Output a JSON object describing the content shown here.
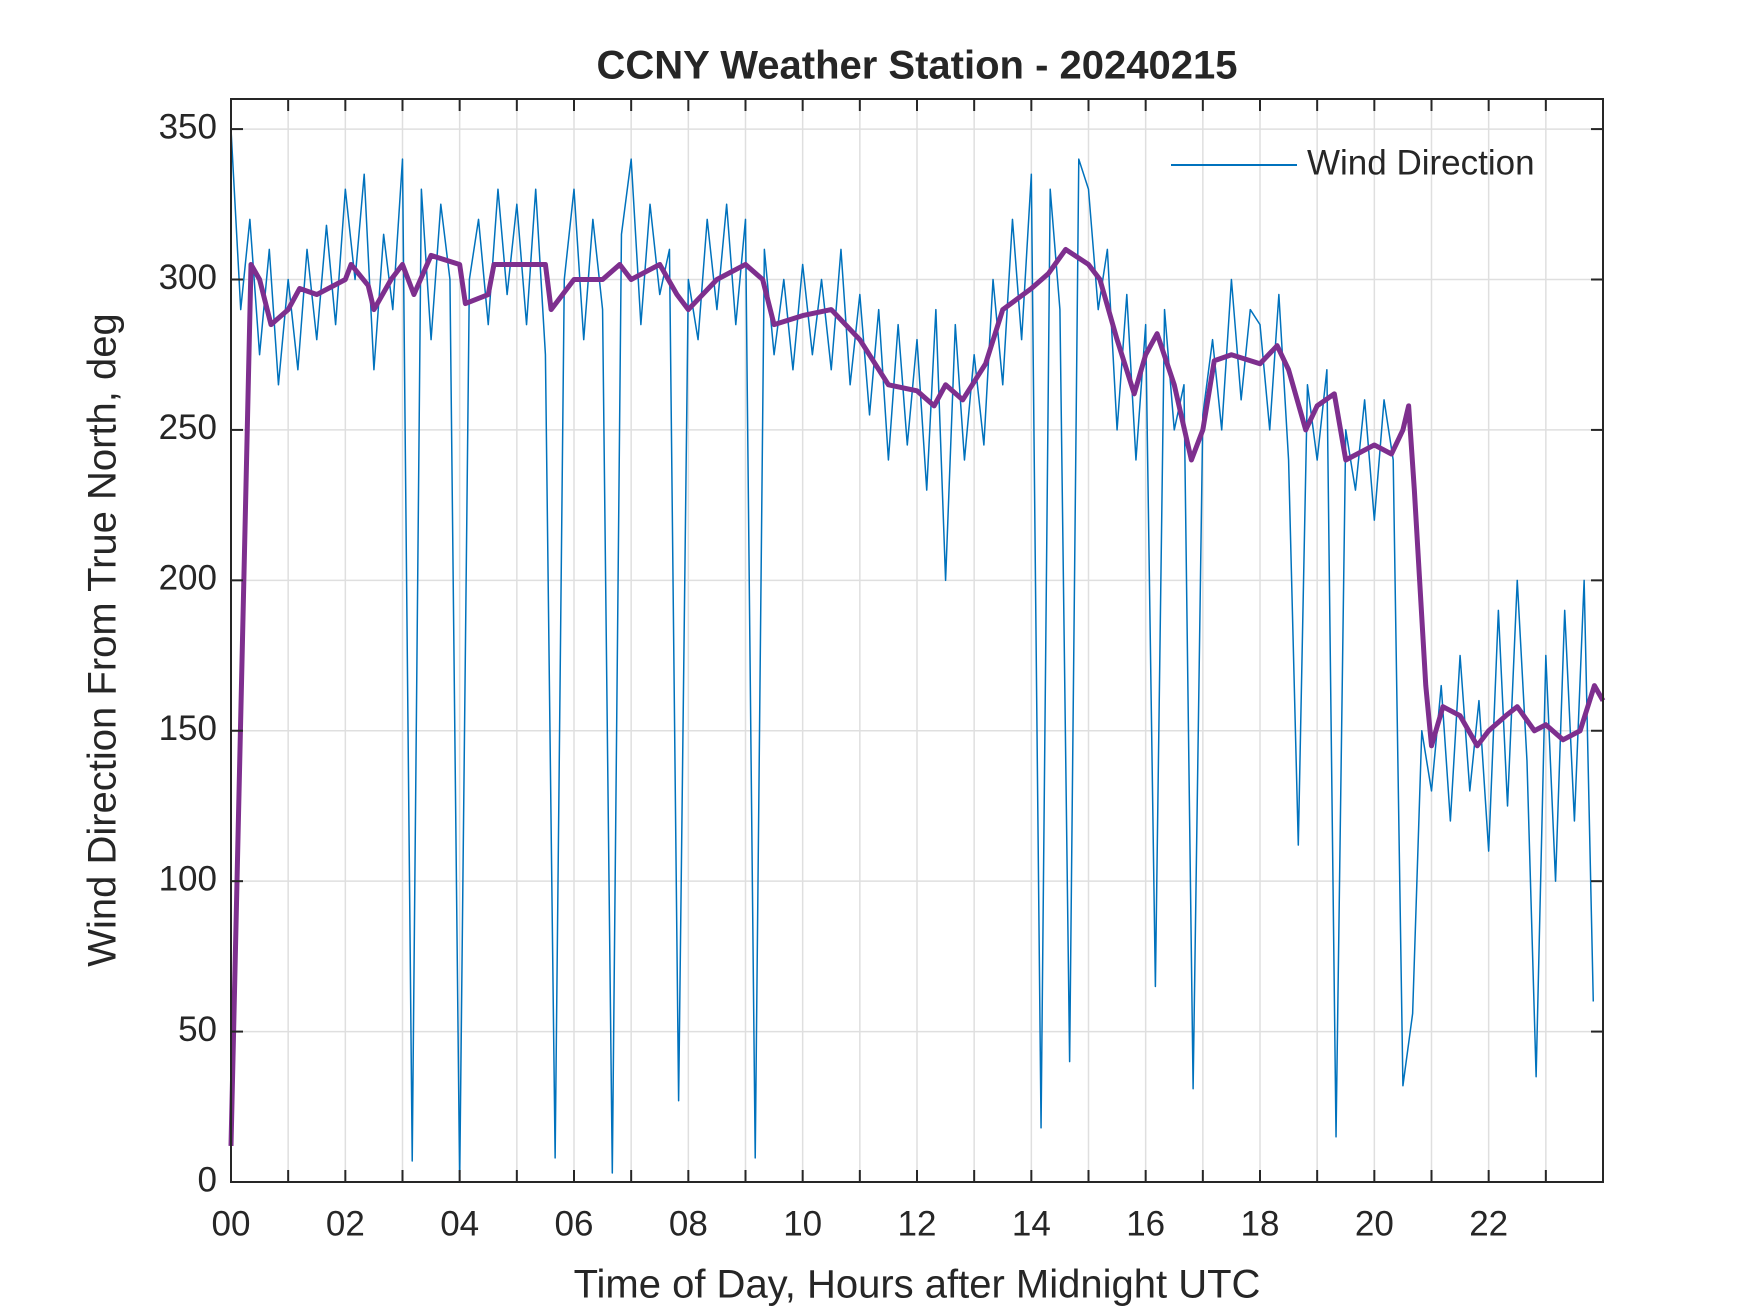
{
  "chart_data": {
    "type": "line",
    "title": "CCNY Weather Station - 20240215",
    "x_label": "Time of Day, Hours after Midnight UTC",
    "y_label": "Wind Direction From True North, deg",
    "xlim": [
      0,
      24
    ],
    "ylim": [
      0,
      360
    ],
    "xticks": [
      {
        "value": 0,
        "label": "00"
      },
      {
        "value": 2,
        "label": "02"
      },
      {
        "value": 4,
        "label": "04"
      },
      {
        "value": 6,
        "label": "06"
      },
      {
        "value": 8,
        "label": "08"
      },
      {
        "value": 10,
        "label": "10"
      },
      {
        "value": 12,
        "label": "12"
      },
      {
        "value": 14,
        "label": "14"
      },
      {
        "value": 16,
        "label": "16"
      },
      {
        "value": 18,
        "label": "18"
      },
      {
        "value": 20,
        "label": "20"
      },
      {
        "value": 22,
        "label": "22"
      }
    ],
    "xminorticks": [
      1,
      3,
      5,
      7,
      9,
      11,
      13,
      15,
      17,
      19,
      21,
      23
    ],
    "yticks": [
      0,
      50,
      100,
      150,
      200,
      250,
      300,
      350
    ],
    "grid": true,
    "legend": "upper right",
    "series": [
      {
        "name": "Wind Direction",
        "color": "#0072BD",
        "width": 1.5,
        "x": [
          0,
          0.17,
          0.33,
          0.5,
          0.67,
          0.83,
          1,
          1.17,
          1.33,
          1.5,
          1.67,
          1.83,
          2,
          2.17,
          2.33,
          2.5,
          2.67,
          2.83,
          3,
          3.17,
          3.33,
          3.5,
          3.67,
          3.83,
          4,
          4.17,
          4.33,
          4.5,
          4.67,
          4.83,
          5,
          5.17,
          5.33,
          5.5,
          5.67,
          5.83,
          6,
          6.17,
          6.33,
          6.5,
          6.67,
          6.83,
          7,
          7.17,
          7.33,
          7.5,
          7.67,
          7.83,
          8,
          8.17,
          8.33,
          8.5,
          8.67,
          8.83,
          9,
          9.17,
          9.33,
          9.5,
          9.67,
          9.83,
          10,
          10.17,
          10.33,
          10.5,
          10.67,
          10.83,
          11,
          11.17,
          11.33,
          11.5,
          11.67,
          11.83,
          12,
          12.17,
          12.33,
          12.5,
          12.67,
          12.83,
          13,
          13.17,
          13.33,
          13.5,
          13.67,
          13.83,
          14,
          14.17,
          14.33,
          14.5,
          14.67,
          14.83,
          15,
          15.17,
          15.33,
          15.5,
          15.67,
          15.83,
          16,
          16.17,
          16.33,
          16.5,
          16.67,
          16.83,
          17,
          17.17,
          17.33,
          17.5,
          17.67,
          17.83,
          18,
          18.17,
          18.33,
          18.5,
          18.67,
          18.83,
          19,
          19.17,
          19.33,
          19.5,
          19.67,
          19.83,
          20,
          20.17,
          20.33,
          20.5,
          20.67,
          20.83,
          21,
          21.17,
          21.33,
          21.5,
          21.67,
          21.83,
          22,
          22.17,
          22.33,
          22.5,
          22.67,
          22.83,
          23,
          23.17,
          23.33,
          23.5,
          23.67,
          23.83
        ],
        "values": [
          350,
          290,
          320,
          275,
          310,
          265,
          300,
          270,
          310,
          280,
          318,
          285,
          330,
          300,
          335,
          270,
          315,
          290,
          340,
          7,
          330,
          280,
          325,
          300,
          0,
          300,
          320,
          285,
          330,
          295,
          325,
          285,
          330,
          275,
          8,
          300,
          330,
          280,
          320,
          290,
          3,
          315,
          340,
          285,
          325,
          295,
          310,
          27,
          300,
          280,
          320,
          290,
          325,
          285,
          320,
          8,
          310,
          275,
          300,
          270,
          305,
          275,
          300,
          270,
          310,
          265,
          295,
          255,
          290,
          240,
          285,
          245,
          280,
          230,
          290,
          200,
          285,
          240,
          275,
          245,
          300,
          265,
          320,
          280,
          335,
          18,
          330,
          290,
          40,
          340,
          330,
          290,
          310,
          250,
          295,
          240,
          285,
          65,
          290,
          250,
          265,
          31,
          255,
          280,
          250,
          300,
          260,
          290,
          285,
          250,
          295,
          240,
          112,
          265,
          240,
          270,
          15,
          250,
          230,
          260,
          220,
          260,
          240,
          32,
          56,
          150,
          130,
          165,
          120,
          175,
          130,
          160,
          110,
          190,
          125,
          200,
          140,
          35,
          175,
          100,
          190,
          120,
          200,
          60
        ]
      },
      {
        "color": "#7E2F8E",
        "width": 5,
        "x": [
          0,
          0.35,
          0.5,
          0.7,
          1,
          1.2,
          1.5,
          2,
          2.1,
          2.4,
          2.5,
          2.8,
          3,
          3.2,
          3.5,
          4,
          4.1,
          4.5,
          4.6,
          5,
          5.5,
          5.6,
          6,
          6.5,
          6.8,
          7,
          7.5,
          7.8,
          8,
          8.5,
          9,
          9.3,
          9.5,
          10,
          10.5,
          11,
          11.5,
          12,
          12.3,
          12.5,
          12.8,
          13.2,
          13.5,
          14,
          14.3,
          14.6,
          15,
          15.2,
          15.5,
          15.8,
          16,
          16.2,
          16.5,
          16.8,
          17,
          17.2,
          17.5,
          18,
          18.3,
          18.5,
          18.8,
          19,
          19.3,
          19.5,
          20,
          20.3,
          20.5,
          20.6,
          20.7,
          20.9,
          21,
          21.2,
          21.5,
          21.8,
          22,
          22.3,
          22.5,
          22.8,
          23,
          23.3,
          23.6,
          23.85,
          24
        ],
        "values": [
          12,
          305,
          300,
          285,
          290,
          297,
          295,
          300,
          305,
          298,
          290,
          300,
          305,
          295,
          308,
          305,
          292,
          295,
          305,
          305,
          305,
          290,
          300,
          300,
          305,
          300,
          305,
          295,
          290,
          300,
          305,
          300,
          285,
          288,
          290,
          280,
          265,
          263,
          258,
          265,
          260,
          272,
          290,
          297,
          302,
          310,
          305,
          300,
          280,
          262,
          275,
          282,
          265,
          240,
          250,
          273,
          275,
          272,
          278,
          270,
          250,
          258,
          262,
          240,
          245,
          242,
          250,
          258,
          230,
          165,
          145,
          158,
          155,
          145,
          150,
          155,
          158,
          150,
          152,
          147,
          150,
          165,
          160
        ]
      }
    ]
  }
}
